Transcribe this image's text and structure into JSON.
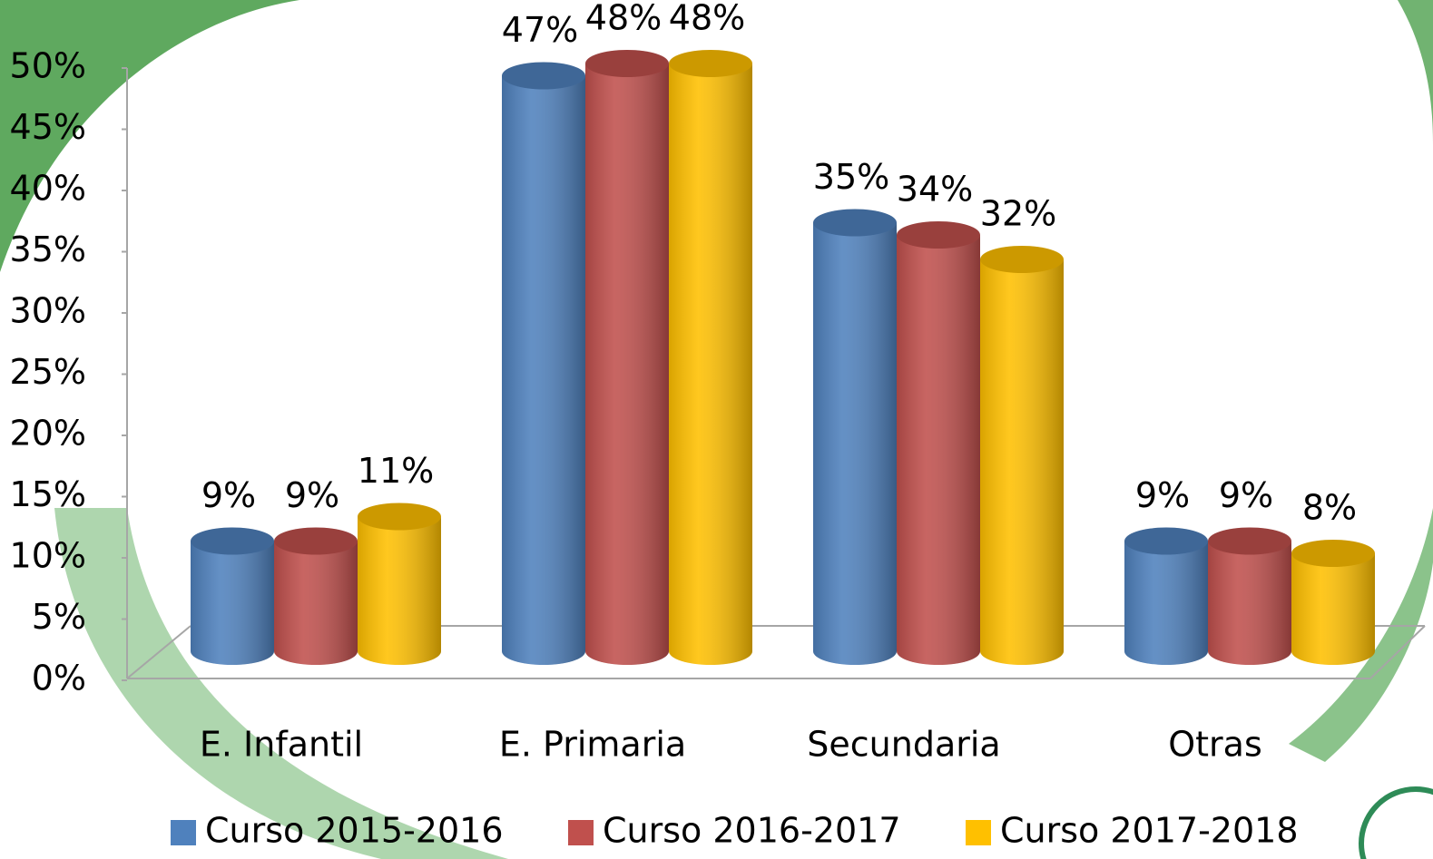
{
  "chart_data": {
    "type": "bar",
    "categories": [
      "E. Infantil",
      "E. Primaria",
      "Secundaria",
      "Otras"
    ],
    "series": [
      {
        "name": "Curso 2015-2016",
        "color": "#4f81bd",
        "values": [
          9,
          47,
          35,
          9
        ],
        "value_labels": [
          "9%",
          "47%",
          "35%",
          "9%"
        ]
      },
      {
        "name": "Curso 2016-2017",
        "color": "#c0504d",
        "values": [
          9,
          48,
          34,
          9
        ],
        "value_labels": [
          "9%",
          "48%",
          "34%",
          "9%"
        ]
      },
      {
        "name": "Curso 2017-2018",
        "color": "#ffc000",
        "values": [
          11,
          48,
          32,
          8
        ],
        "value_labels": [
          "11%",
          "48%",
          "32%",
          "8%"
        ]
      }
    ],
    "ylim": [
      0,
      50
    ],
    "yticks": [
      {
        "value": 0,
        "label": "0%"
      },
      {
        "value": 5,
        "label": "5%"
      },
      {
        "value": 10,
        "label": "10%"
      },
      {
        "value": 15,
        "label": "15%"
      },
      {
        "value": 20,
        "label": "20%"
      },
      {
        "value": 25,
        "label": "25%"
      },
      {
        "value": 30,
        "label": "30%"
      },
      {
        "value": 35,
        "label": "35%"
      },
      {
        "value": 40,
        "label": "40%"
      },
      {
        "value": 45,
        "label": "45%"
      },
      {
        "value": 50,
        "label": "50%"
      }
    ],
    "legend": "bottom"
  }
}
